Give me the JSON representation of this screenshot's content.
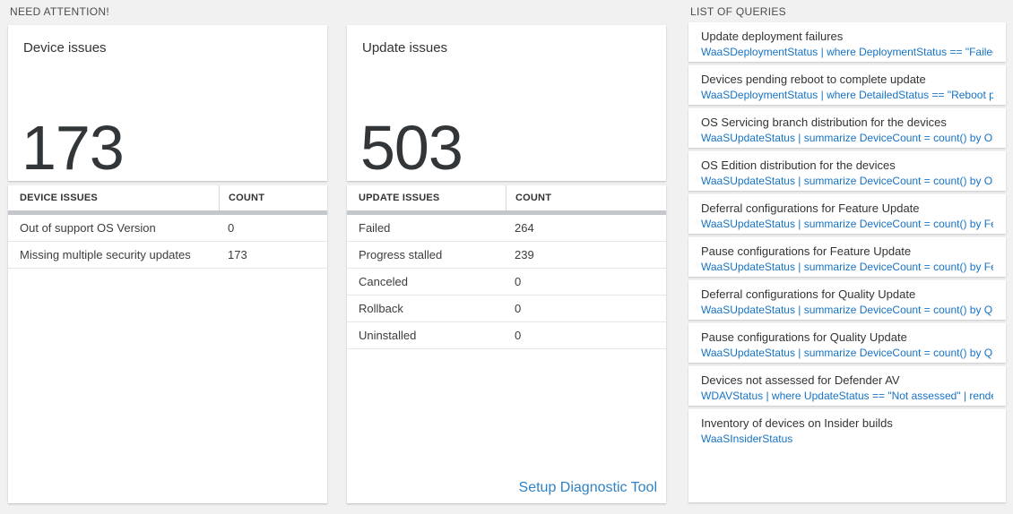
{
  "colors": {
    "background": "#f1f1f1",
    "query_text_blue": "#1673c5",
    "link_blue": "#2e83c6",
    "header_bar_gray": "#c3c7cb"
  },
  "need_attention": {
    "section_title": "NEED ATTENTION!",
    "device": {
      "card_title": "Device issues",
      "big_number": "173",
      "table": {
        "headers": [
          "DEVICE ISSUES",
          "COUNT"
        ],
        "rows": [
          [
            "Out of support OS Version",
            "0"
          ],
          [
            "Missing multiple security updates",
            "173"
          ]
        ]
      }
    },
    "update": {
      "card_title": "Update issues",
      "big_number": "503",
      "table": {
        "headers": [
          "UPDATE ISSUES",
          "COUNT"
        ],
        "rows": [
          [
            "Failed",
            "264"
          ],
          [
            "Progress stalled",
            "239"
          ],
          [
            "Canceled",
            "0"
          ],
          [
            "Rollback",
            "0"
          ],
          [
            "Uninstalled",
            "0"
          ]
        ]
      },
      "link_label": "Setup Diagnostic Tool"
    }
  },
  "queries": {
    "section_title": "LIST OF QUERIES",
    "items": [
      {
        "title": "Update deployment failures",
        "query": "WaaSDeploymentStatus | where DeploymentStatus == \"Failed\" |..."
      },
      {
        "title": "Devices pending reboot to complete update",
        "query": "WaaSDeploymentStatus | where DetailedStatus == \"Reboot pend..."
      },
      {
        "title": "OS Servicing branch distribution for the devices",
        "query": "WaaSUpdateStatus | summarize DeviceCount = count() by OSSer..."
      },
      {
        "title": "OS Edition distribution for the devices",
        "query": "WaaSUpdateStatus | summarize DeviceCount = count() by OSEdit..."
      },
      {
        "title": "Deferral configurations for Feature Update",
        "query": "WaaSUpdateStatus | summarize DeviceCount = count() by Featur..."
      },
      {
        "title": "Pause configurations for Feature Update",
        "query": "WaaSUpdateStatus | summarize DeviceCount = count() by Featur..."
      },
      {
        "title": "Deferral configurations for Quality Update",
        "query": "WaaSUpdateStatus | summarize DeviceCount = count() by Qualit..."
      },
      {
        "title": "Pause configurations for Quality Update",
        "query": "WaaSUpdateStatus | summarize DeviceCount = count() by Qualit..."
      },
      {
        "title": "Devices not assessed for Defender AV",
        "query": "WDAVStatus | where UpdateStatus == \"Not assessed\" | render ta..."
      },
      {
        "title": "Inventory of devices on Insider builds",
        "query": "WaaSInsiderStatus"
      }
    ]
  }
}
